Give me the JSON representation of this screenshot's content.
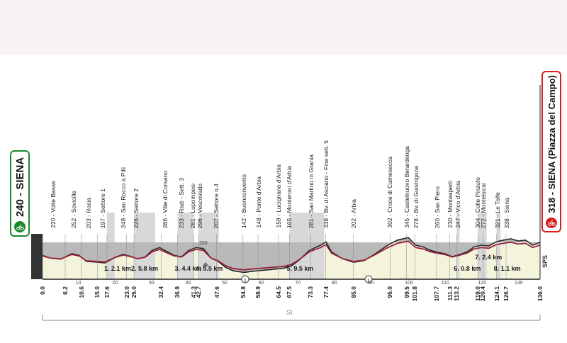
{
  "start": {
    "label": "240 - SIENA",
    "color": "#1a8a2a",
    "icon": "cyclist-icon"
  },
  "finish": {
    "label": "318 - SIENA (Piazza del Campo)",
    "color": "#d42020",
    "icon": "cyclist-icon"
  },
  "side_label": "SPS",
  "bottom_label": "SI",
  "total_km": 136.0,
  "profile_colors": {
    "fill": "#b9b9b9",
    "stroke": "#222222",
    "road": "#9a1f3a",
    "sector_fill": "#d8d8d8",
    "base_fill": "#f4f4dc"
  },
  "elevation_label": "200",
  "places": [
    {
      "km": 3.0,
      "text": "220 - Volte Basse"
    },
    {
      "km": 8.5,
      "text": "252 - Sovicille"
    },
    {
      "km": 12.5,
      "text": "203 - Rosia"
    },
    {
      "km": 16.5,
      "text": "197 - Settore 1"
    },
    {
      "km": 22.0,
      "text": "248 - San Rocco a Pilli"
    },
    {
      "km": 25.5,
      "text": "226 - Settore 2"
    },
    {
      "km": 33.5,
      "text": "286 - Ville di Corsano"
    },
    {
      "km": 38.0,
      "text": "233 - Radi - Sett. 3"
    },
    {
      "km": 41.0,
      "text": "281 - Lupompesi"
    },
    {
      "km": 43.0,
      "text": "296 - Vescovado"
    },
    {
      "km": 47.5,
      "text": "207 - Settore n.4"
    },
    {
      "km": 55.0,
      "text": "142 - Buonconvento"
    },
    {
      "km": 59.0,
      "text": "148 - Ponte d'Arbia"
    },
    {
      "km": 64.5,
      "text": "159 - Lucignano d'Arbia"
    },
    {
      "km": 67.5,
      "text": "165 - Monteroni d'Arbia"
    },
    {
      "km": 73.5,
      "text": "281 - San Martino in Grania"
    },
    {
      "km": 77.5,
      "text": "338 - Bv. di Asciano - Fine sett. 5"
    },
    {
      "km": 85.0,
      "text": "202 - Arbia"
    },
    {
      "km": 95.0,
      "text": "302 - Croce di Camesecca"
    },
    {
      "km": 99.5,
      "text": "345 - Castelnuovo Berardenga"
    },
    {
      "km": 102.0,
      "text": "278 - Bv. di Guistrigona"
    },
    {
      "km": 108.0,
      "text": "260 - San Piero"
    },
    {
      "km": 111.3,
      "text": "230 - Monteaperti"
    },
    {
      "km": 113.5,
      "text": "247 - Vico d'Arbia"
    },
    {
      "km": 119.0,
      "text": "304 - Colle Pinzuto"
    },
    {
      "km": 120.5,
      "text": "272 - Montelsicai"
    },
    {
      "km": 124.3,
      "text": "321 - Le Tolfe"
    },
    {
      "km": 126.8,
      "text": "338 - Siena"
    }
  ],
  "km_marks": [
    "0.0",
    "6.2",
    "10.6",
    "15.0",
    "17.6",
    "23.0",
    "25.0",
    "32.4",
    "36.9",
    "41.3",
    "42.7",
    "47.6",
    "54.8",
    "58.9",
    "64.5",
    "67.5",
    "73.3",
    "77.4",
    "85.0",
    "95.0",
    "99.5",
    "101.8",
    "107.7",
    "111.3",
    "113.2",
    "119.0",
    "120.4",
    "124.1",
    "126.7",
    "136.0"
  ],
  "ticks": [
    "10",
    "20",
    "30",
    "40",
    "50",
    "60",
    "70",
    "80",
    "90",
    "100",
    "110",
    "120",
    "130"
  ],
  "sectors": [
    {
      "label": "1. 2.1 km",
      "start": 17.6,
      "end": 19.7
    },
    {
      "label": "2. 5.8 km",
      "start": 25.0,
      "end": 30.8
    },
    {
      "label": "3. 4.4 km",
      "start": 36.9,
      "end": 41.3
    },
    {
      "label": "4. 5.5 km",
      "start": 42.7,
      "end": 48.2
    },
    {
      "label": "5. 9.5 km",
      "start": 67.5,
      "end": 77.0
    },
    {
      "label": "6. 0.8 km",
      "start": 113.2,
      "end": 114.0
    },
    {
      "label": "7. 2.4 km",
      "start": 119.0,
      "end": 121.4
    },
    {
      "label": "8. 1.1 km",
      "start": 124.1,
      "end": 125.2
    }
  ],
  "elevation_profile": [
    [
      0,
      240
    ],
    [
      2,
      225
    ],
    [
      5,
      218
    ],
    [
      8,
      250
    ],
    [
      10,
      240
    ],
    [
      12,
      205
    ],
    [
      15,
      200
    ],
    [
      17,
      196
    ],
    [
      20,
      230
    ],
    [
      22,
      246
    ],
    [
      24,
      235
    ],
    [
      26,
      220
    ],
    [
      28,
      230
    ],
    [
      30,
      270
    ],
    [
      32,
      286
    ],
    [
      34,
      262
    ],
    [
      36,
      240
    ],
    [
      38,
      232
    ],
    [
      40,
      270
    ],
    [
      42,
      286
    ],
    [
      44,
      280
    ],
    [
      46,
      225
    ],
    [
      48,
      205
    ],
    [
      50,
      170
    ],
    [
      52,
      150
    ],
    [
      55,
      140
    ],
    [
      58,
      148
    ],
    [
      60,
      152
    ],
    [
      63,
      158
    ],
    [
      66,
      165
    ],
    [
      68,
      178
    ],
    [
      70,
      210
    ],
    [
      73,
      270
    ],
    [
      76,
      300
    ],
    [
      77.5,
      320
    ],
    [
      79,
      260
    ],
    [
      82,
      220
    ],
    [
      85,
      200
    ],
    [
      88,
      210
    ],
    [
      91,
      250
    ],
    [
      94,
      295
    ],
    [
      97,
      330
    ],
    [
      100,
      345
    ],
    [
      102,
      300
    ],
    [
      104,
      290
    ],
    [
      106,
      270
    ],
    [
      108,
      258
    ],
    [
      110,
      250
    ],
    [
      112,
      232
    ],
    [
      114,
      245
    ],
    [
      116,
      260
    ],
    [
      118,
      290
    ],
    [
      120,
      300
    ],
    [
      122,
      295
    ],
    [
      124,
      320
    ],
    [
      126,
      330
    ],
    [
      128,
      338
    ],
    [
      130,
      325
    ],
    [
      132,
      330
    ],
    [
      134,
      300
    ],
    [
      136,
      318
    ]
  ]
}
